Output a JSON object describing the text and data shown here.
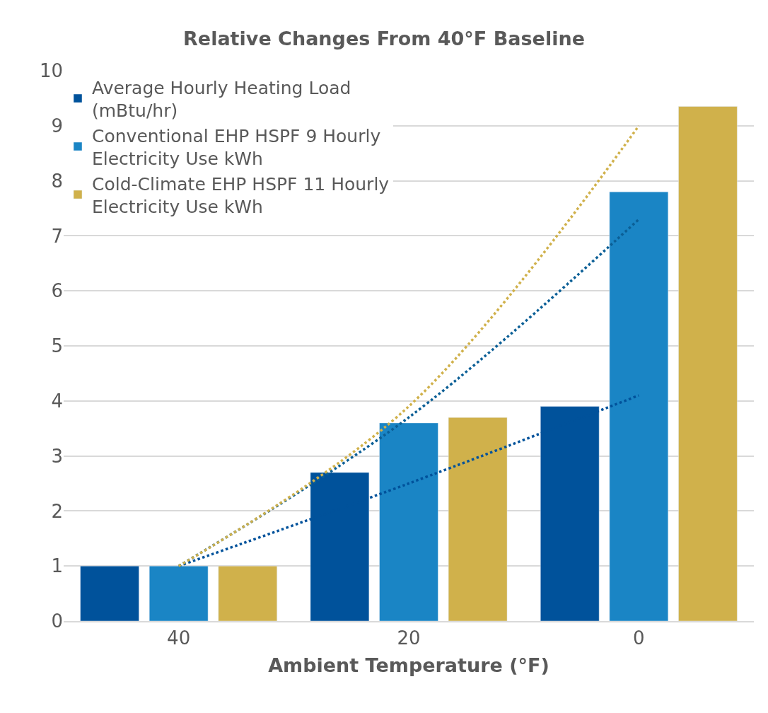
{
  "chart_data": {
    "type": "bar",
    "title": "Relative Changes From 40°F Baseline",
    "xlabel": "Ambient Temperature (°F)",
    "categories": [
      "40",
      "20",
      "0"
    ],
    "series": [
      {
        "name": "Average Hourly Heating Load (mBtu/hr)",
        "color": "#00529b",
        "values": [
          1,
          2.7,
          3.9
        ]
      },
      {
        "name": "Conventional EHP HSPF 9 Hourly Electricity Use kWh",
        "color": "#1a85c5",
        "values": [
          1,
          3.6,
          7.8
        ]
      },
      {
        "name": "Cold-Climate EHP HSPF 11 Hourly Electricity Use kWh",
        "color": "#d0b14b",
        "values": [
          1,
          3.7,
          9.35
        ]
      },
      {
        "type": "line",
        "color": "#00529b",
        "line_style": "dotted",
        "values": [
          1,
          2.5,
          4.1
        ]
      },
      {
        "type": "line",
        "color": "#0b5f96",
        "line_style": "dotted",
        "values": [
          1,
          3.7,
          7.3
        ]
      },
      {
        "type": "line",
        "color": "#d0b14b",
        "line_style": "dotted",
        "values": [
          1,
          3.9,
          9.0
        ]
      }
    ],
    "ylim": [
      0,
      10
    ],
    "yticks": [
      0,
      1,
      2,
      3,
      4,
      5,
      6,
      7,
      8,
      9,
      10
    ],
    "grid": "y",
    "legend": "top left"
  }
}
